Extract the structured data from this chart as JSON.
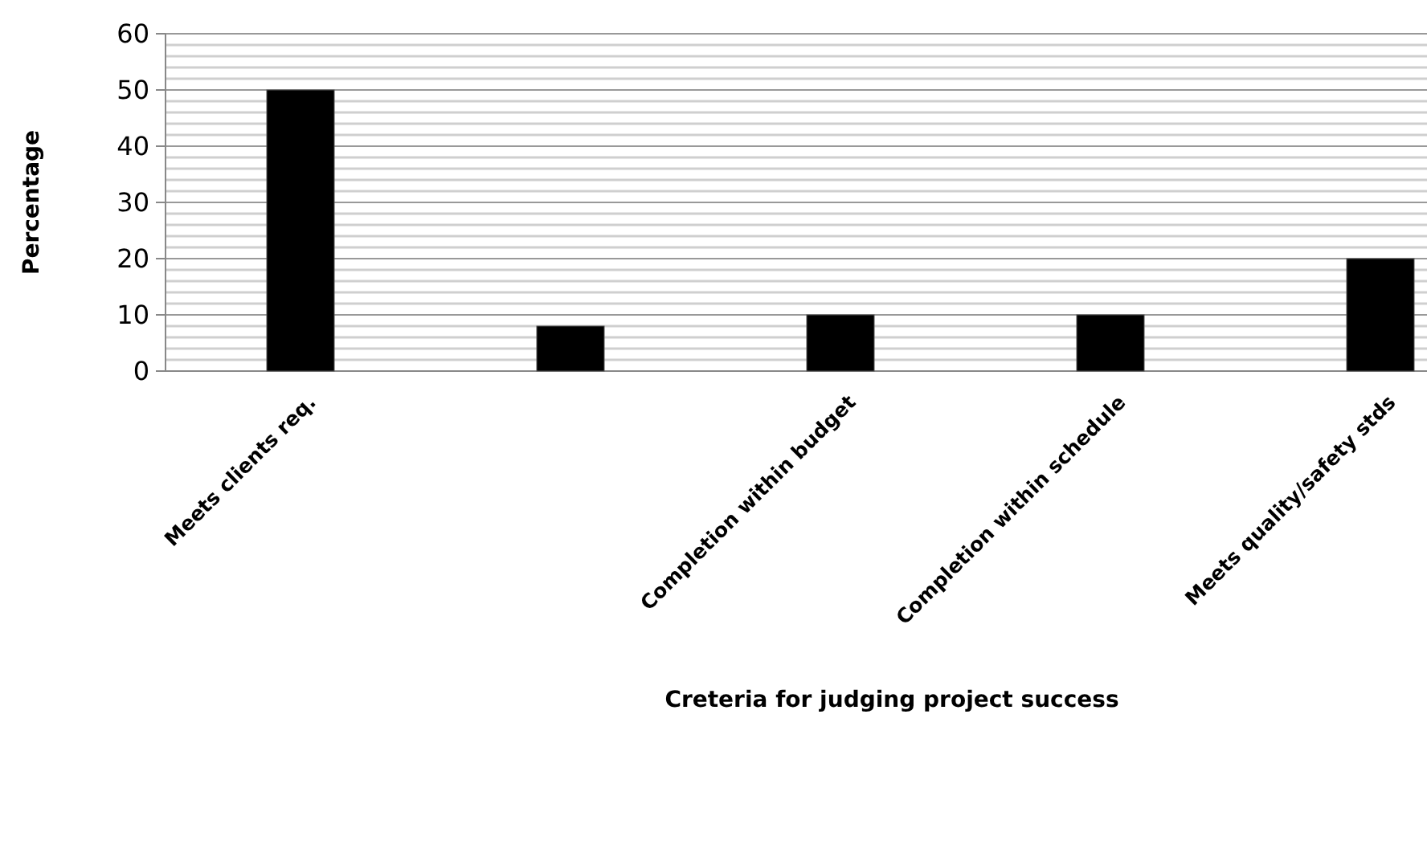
{
  "chart_data": {
    "type": "bar",
    "xlabel": "Creteria for judging project success",
    "ylabel": "Percentage",
    "categories": [
      "Meets clients req.",
      null,
      "Completion within budget",
      "Completion within schedule",
      "Meets quality/safety stds"
    ],
    "values": [
      50,
      8,
      10,
      10,
      20
    ],
    "color": "#000000",
    "ylim": [
      0,
      60
    ],
    "yticks": [
      0,
      {
        "value": 2,
        "label": null
      },
      {
        "value": 4,
        "label": null
      },
      {
        "value": 6,
        "label": null
      },
      {
        "value": 8,
        "label": null
      },
      10,
      {
        "value": 12,
        "label": null
      },
      {
        "value": 14,
        "label": null
      },
      {
        "value": 16,
        "label": null
      },
      {
        "value": 18,
        "label": null
      },
      20,
      {
        "value": 22,
        "label": null
      },
      {
        "value": 24,
        "label": null
      },
      {
        "value": 26,
        "label": null
      },
      {
        "value": 28,
        "label": null
      },
      30,
      {
        "value": 32,
        "label": null
      },
      {
        "value": 34,
        "label": null
      },
      {
        "value": 36,
        "label": null
      },
      {
        "value": 38,
        "label": null
      },
      40,
      {
        "value": 42,
        "label": null
      },
      {
        "value": 44,
        "label": null
      },
      {
        "value": 46,
        "label": null
      },
      {
        "value": 48,
        "label": null
      },
      50,
      {
        "value": 52,
        "label": null
      },
      {
        "value": 54,
        "label": null
      },
      {
        "value": 56,
        "label": null
      },
      {
        "value": 58,
        "label": null
      },
      60
    ],
    "grid": "y"
  }
}
